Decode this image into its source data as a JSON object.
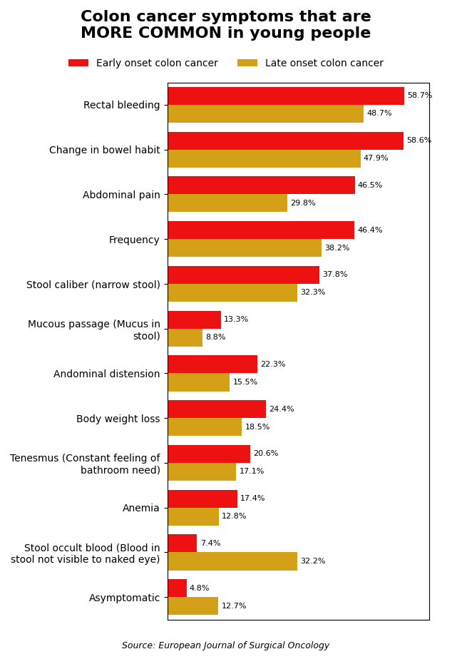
{
  "chart_data": {
    "type": "bar",
    "orientation": "horizontal",
    "title": "Colon cancer symptoms that are\nMORE COMMON in young people",
    "categories": [
      "Rectal bleeding",
      "Change in bowel habit",
      "Abdominal pain",
      "Frequency",
      "Stool caliber (narrow stool)",
      "Mucous passage (Mucus in\nstool)",
      "Andominal distension",
      "Body weight loss",
      "Tenesmus (Constant feeling of\nbathroom need)",
      "Anemia",
      "Stool occult blood (Blood in\nstool not visible to naked eye)",
      "Asymptomatic"
    ],
    "series": [
      {
        "name": "Early onset colon cancer",
        "color": "#ee1111",
        "values": [
          58.7,
          58.6,
          46.5,
          46.4,
          37.8,
          13.3,
          22.3,
          24.4,
          20.6,
          17.4,
          7.4,
          4.8
        ],
        "value_labels": [
          "58.7%",
          "58.6%",
          "46.5%",
          "46.4%",
          "37.8%",
          "13.3%",
          "22.3%",
          "24.4%",
          "20.6%",
          "17.4%",
          "7.4%",
          "4.8%"
        ]
      },
      {
        "name": "Late onset colon cancer",
        "color": "#d4a017",
        "values": [
          48.7,
          47.9,
          29.8,
          38.2,
          32.3,
          8.8,
          15.5,
          18.5,
          17.1,
          12.8,
          32.2,
          12.7
        ],
        "value_labels": [
          "48.7%",
          "47.9%",
          "29.8%",
          "38.2%",
          "32.3%",
          "8.8%",
          "15.5%",
          "18.5%",
          "17.1%",
          "12.8%",
          "32.2%",
          "12.7%"
        ]
      }
    ],
    "xlim": [
      0,
      65
    ],
    "tick_labels": "y",
    "grid": false,
    "legend": "upper center",
    "data_labels": true,
    "annotations": [
      "Source: European Journal of Surgical Oncology"
    ]
  }
}
